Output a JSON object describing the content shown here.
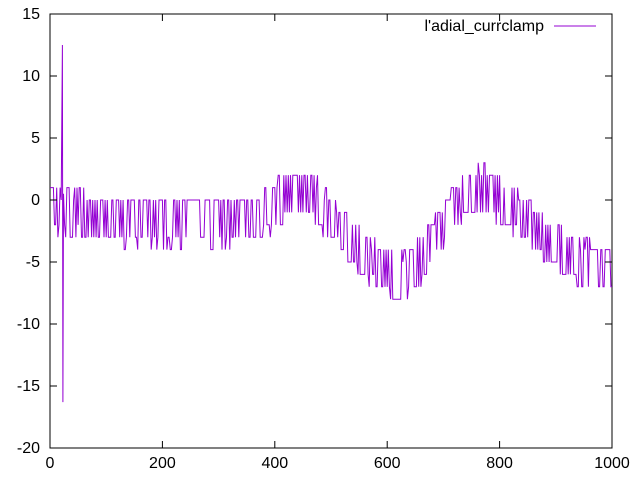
{
  "chart_data": {
    "type": "line",
    "title": "",
    "xlabel": "",
    "ylabel": "",
    "xlim": [
      0,
      1000
    ],
    "ylim": [
      -20,
      15
    ],
    "x_ticks": [
      0,
      200,
      400,
      600,
      800,
      1000
    ],
    "y_ticks": [
      -20,
      -15,
      -10,
      -5,
      0,
      5,
      10,
      15
    ],
    "grid": false,
    "legend_position": "top-right",
    "series": [
      {
        "name": "l'adial_currclamp",
        "color": "#9400d3",
        "x": [
          0,
          10,
          20,
          22,
          23,
          24,
          25,
          26,
          30,
          40,
          60,
          80,
          100,
          120,
          150,
          200,
          250,
          300,
          350,
          380,
          400,
          420,
          440,
          460,
          480,
          500,
          520,
          540,
          560,
          580,
          600,
          620,
          640,
          660,
          680,
          700,
          720,
          740,
          760,
          780,
          800,
          820,
          840,
          860,
          880,
          900,
          920,
          940,
          960,
          980,
          1000
        ],
        "y": [
          -0.5,
          -0.5,
          -1,
          12.5,
          -16.3,
          0.5,
          -1,
          -1,
          -1,
          -1,
          -1,
          -1.5,
          -1.5,
          -1.8,
          -1.8,
          -1.8,
          -1.8,
          -1.8,
          -1.5,
          -1,
          -0.5,
          0.5,
          0.8,
          0.5,
          -0.5,
          -1.5,
          -2.5,
          -3.5,
          -4.5,
          -5.2,
          -5.8,
          -6.2,
          -5.8,
          -4.8,
          -3.5,
          -2,
          -0.5,
          0.5,
          0.9,
          0.6,
          0,
          -0.8,
          -1.5,
          -2.2,
          -3,
          -3.8,
          -4.3,
          -4.8,
          -5.2,
          -5.6,
          -5.8
        ]
      }
    ]
  }
}
